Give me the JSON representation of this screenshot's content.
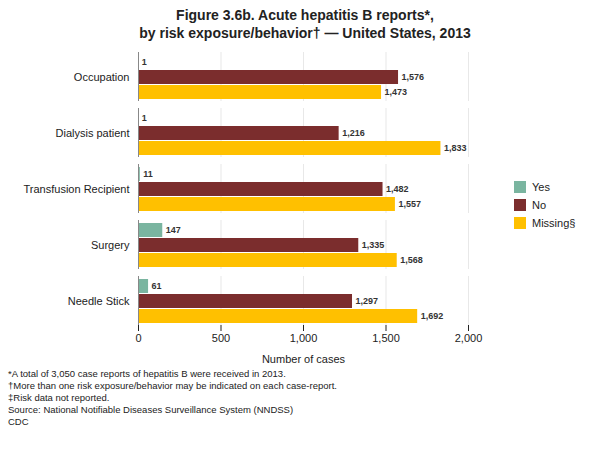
{
  "chart_data": {
    "type": "bar",
    "orientation": "horizontal",
    "title": "Figure 3.6b. Acute hepatitis B reports*,",
    "subtitle": "by risk exposure/behavior† — United States, 2013",
    "categories": [
      "Occupation",
      "Dialysis patient",
      "Transfusion Recipient",
      "Surgery",
      "Needle Stick"
    ],
    "series": [
      {
        "name": "Yes",
        "color": "#7ab5a0",
        "values": [
          1,
          1,
          11,
          147,
          61
        ],
        "value_labels": [
          "1",
          "1",
          "11",
          "147",
          "61"
        ]
      },
      {
        "name": "No",
        "color": "#7b2d2d",
        "values": [
          1576,
          1216,
          1482,
          1335,
          1297
        ],
        "value_labels": [
          "1,576",
          "1,216",
          "1,482",
          "1,335",
          "1,297"
        ]
      },
      {
        "name": "Missing§",
        "color": "#ffc000",
        "values": [
          1473,
          1833,
          1557,
          1568,
          1692
        ],
        "value_labels": [
          "1,473",
          "1,833",
          "1,557",
          "1,568",
          "1,692"
        ]
      }
    ],
    "xlabel": "Number of cases",
    "xlim": [
      0,
      2000
    ],
    "xticks": [
      0,
      500,
      {
        "value": 1000,
        "label": "1,000"
      },
      {
        "value": 1500,
        "label": "1,500"
      },
      {
        "value": 2000,
        "label": "2,000"
      }
    ],
    "grid": true,
    "legend": "right",
    "data_labels": true,
    "annotations": [
      "*A total of 3,050 case reports of hepatitis B were received in 2013.",
      "†More than one risk exposure/behavior may be indicated on each case-report.",
      "‡Risk data not reported.",
      "Source: National Notifiable Diseases Surveillance System (NNDSS)",
      "CDC"
    ]
  }
}
